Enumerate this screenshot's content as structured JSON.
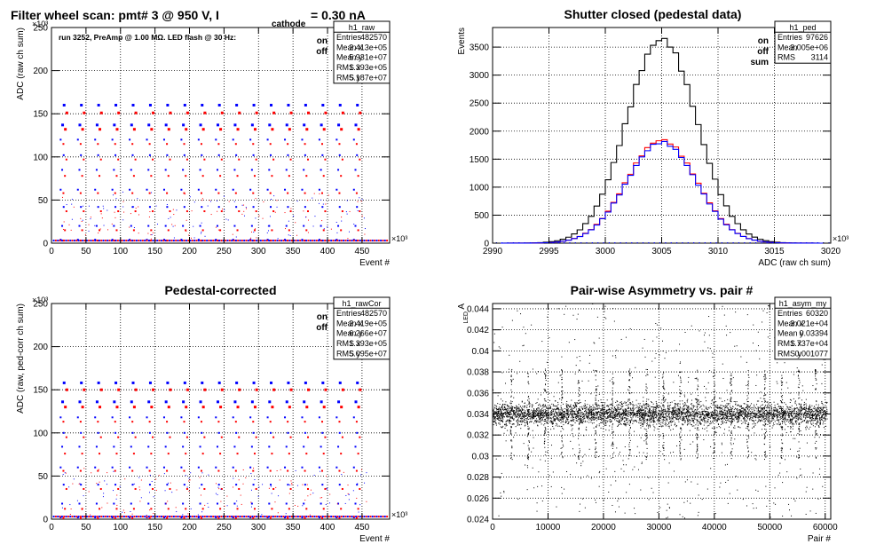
{
  "chart_data": [
    {
      "id": "raw",
      "type": "scatter",
      "title": "Filter wheel scan: pmt#   3 @   950 V, I",
      "title_sub": "cathode",
      "title_tail": "= 0.30 nA",
      "annotation": "run 3252, PreAmp @ 1.00 MΩ.  LED flash @   30 Hz:",
      "xlabel": "Event #",
      "ylabel": "ADC (raw ch sum)",
      "x_exponent": "×10³",
      "y_exponent": "×10³",
      "xlim": [
        0,
        490
      ],
      "ylim": [
        0,
        250
      ],
      "x_ticks": [
        "0",
        "50",
        "100",
        "150",
        "200",
        "250",
        "300",
        "350",
        "400",
        "450"
      ],
      "y_ticks": [
        "0",
        "50",
        "100",
        "150",
        "200",
        "250"
      ],
      "legend": [
        {
          "name": "on",
          "color": "#0000ff"
        },
        {
          "name": "off",
          "color": "#ff0000"
        }
      ],
      "stats": {
        "name": "h1_raw",
        "rows": [
          [
            "Entries",
            "482570"
          ],
          [
            "Mean x",
            "2.413e+05"
          ],
          [
            "Mean y",
            "5.931e+07"
          ],
          [
            "RMS x",
            "1.393e+05"
          ],
          [
            "RMS y",
            "5.187e+07"
          ]
        ]
      },
      "series": [
        {
          "name": "on",
          "color": "#0000ff",
          "level_values": [
            4,
            20,
            42,
            62,
            85,
            102,
            120,
            137,
            160
          ]
        },
        {
          "name": "off",
          "color": "#ff0000",
          "level_values": [
            3,
            15,
            37,
            58,
            78,
            97,
            115,
            132,
            151
          ]
        }
      ],
      "block_period_x": 25,
      "block_start_x": 12
    },
    {
      "id": "ped",
      "type": "line",
      "title": "Shutter closed (pedestal data)",
      "xlabel": "ADC (raw ch sum)",
      "ylabel": "Events",
      "x_exponent": "×10³",
      "xlim": [
        2990,
        3020
      ],
      "ylim": [
        0,
        3850
      ],
      "x_ticks": [
        "2990",
        "2995",
        "3000",
        "3005",
        "3010",
        "3015",
        "3020"
      ],
      "y_ticks": [
        "0",
        "500",
        "1000",
        "1500",
        "2000",
        "2500",
        "3000",
        "3500"
      ],
      "legend": [
        {
          "name": "on",
          "color": "#0000ff"
        },
        {
          "name": "off",
          "color": "#ff0000"
        },
        {
          "name": "sum",
          "color": "#000000"
        }
      ],
      "stats": {
        "name": "h1_ped",
        "rows": [
          [
            "Entries",
            "97626"
          ],
          [
            "Mean",
            "3.005e+06"
          ],
          [
            "RMS",
            "3114"
          ]
        ]
      },
      "series": [
        {
          "name": "sum",
          "color": "#000000",
          "mean": 3005,
          "sigma": 3.11,
          "peak": 3640
        },
        {
          "name": "off",
          "color": "#ff0000",
          "mean": 3005,
          "sigma": 3.11,
          "peak": 1840
        },
        {
          "name": "on",
          "color": "#0000ff",
          "mean": 3005,
          "sigma": 3.11,
          "peak": 1800
        }
      ]
    },
    {
      "id": "rawCor",
      "type": "scatter",
      "title": "Pedestal-corrected",
      "xlabel": "Event #",
      "ylabel": "ADC (raw, ped-corr ch sum)",
      "x_exponent": "×10³",
      "y_exponent": "×10³",
      "xlim": [
        0,
        490
      ],
      "ylim": [
        0,
        250
      ],
      "x_ticks": [
        "0",
        "50",
        "100",
        "150",
        "200",
        "250",
        "300",
        "350",
        "400",
        "450"
      ],
      "y_ticks": [
        "0",
        "50",
        "100",
        "150",
        "200",
        "250"
      ],
      "legend": [
        {
          "name": "on",
          "color": "#0000ff"
        },
        {
          "name": "off",
          "color": "#ff0000"
        }
      ],
      "stats": {
        "name": "h1_rawCor",
        "rows": [
          [
            "Entries",
            "482570"
          ],
          [
            "Mean x",
            "2.419e+05"
          ],
          [
            "Mean y",
            "6.266e+07"
          ],
          [
            "RMS x",
            "1.393e+05"
          ],
          [
            "RMS y",
            "5.095e+07"
          ]
        ]
      },
      "series": [
        {
          "name": "on",
          "color": "#0000ff",
          "level_values": [
            2,
            18,
            40,
            60,
            84,
            100,
            118,
            136,
            158
          ]
        },
        {
          "name": "off",
          "color": "#ff0000",
          "level_values": [
            1,
            12,
            35,
            56,
            76,
            95,
            113,
            130,
            150
          ]
        }
      ],
      "block_period_x": 25,
      "block_start_x": 12
    },
    {
      "id": "asym",
      "type": "scatter",
      "title": "Pair-wise Asymmetry vs. pair #",
      "xlabel": "Pair #",
      "ylabel": "A",
      "ylabel_sub": "LED",
      "xlim": [
        0,
        61000
      ],
      "ylim": [
        0.024,
        0.0445
      ],
      "x_ticks": [
        "0",
        "10000",
        "20000",
        "30000",
        "40000",
        "50000",
        "60000"
      ],
      "y_ticks": [
        "0.024",
        "0.026",
        "0.028",
        "0.03",
        "0.032",
        "0.034",
        "0.036",
        "0.038",
        "0.04",
        "0.042",
        "0.044"
      ],
      "stats": {
        "name": "h1_asym_my",
        "rows": [
          [
            "Entries",
            "60320"
          ],
          [
            "Mean x",
            "3.021e+04"
          ],
          [
            "Mean y",
            "0.03394"
          ],
          [
            "RMS x",
            "1.737e+04"
          ],
          [
            "RMS y",
            "0.001077"
          ]
        ]
      },
      "series": [
        {
          "name": "asym",
          "color": "#000000",
          "center": 0.034,
          "band_width": 0.0012
        }
      ],
      "spike_period_x": 3050,
      "spike_start_x": 3300
    }
  ]
}
